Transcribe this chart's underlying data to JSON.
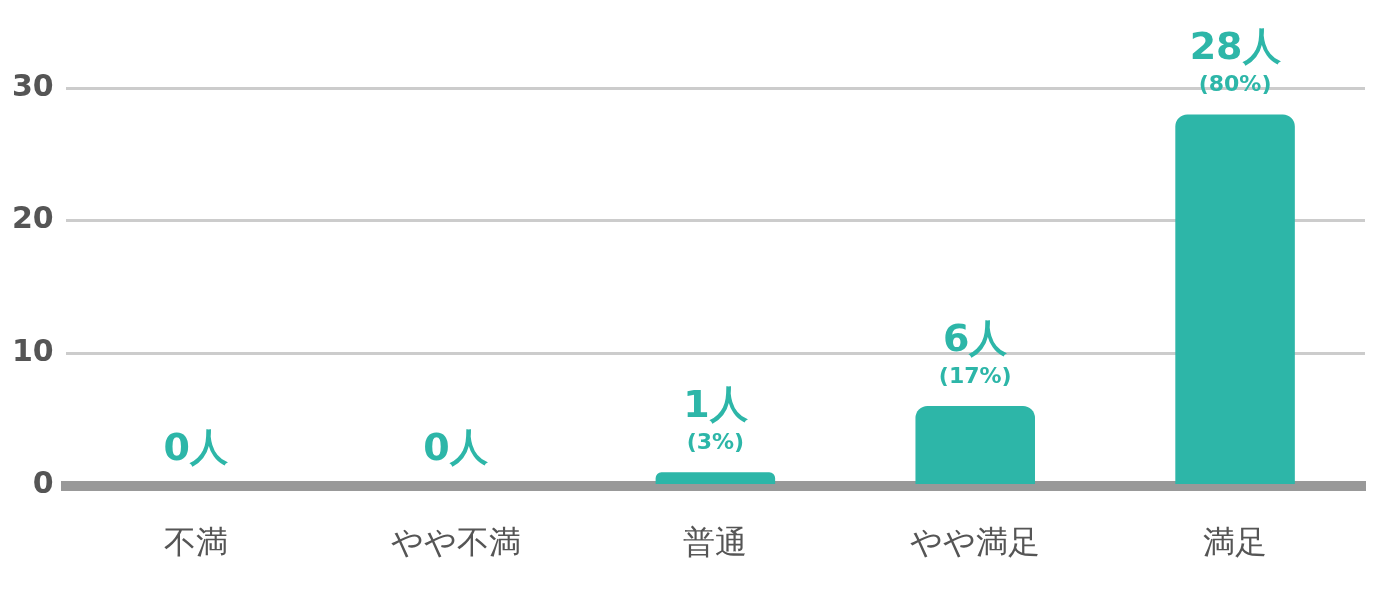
{
  "chart_data": {
    "type": "bar",
    "categories": [
      "不満",
      "やや不満",
      "普通",
      "やや満足",
      "満足"
    ],
    "values": [
      0,
      0,
      1,
      6,
      28
    ],
    "value_labels": [
      "0人",
      "0人",
      "1人 (3%)",
      "6人 (17%)",
      "28人 (80%)"
    ],
    "color": "#2db6a8",
    "ylim": [
      0,
      30
    ],
    "yticks": [
      0,
      10,
      20,
      30
    ],
    "grid": "y",
    "legend": false
  }
}
